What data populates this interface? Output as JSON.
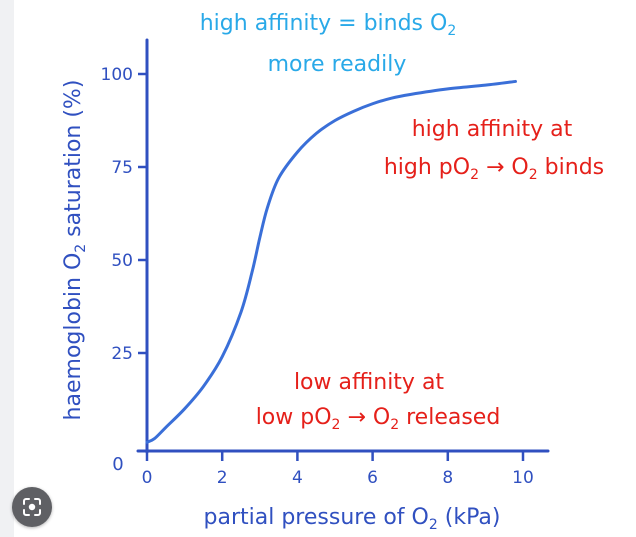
{
  "chart_data": {
    "type": "line",
    "ylabel_parts": [
      "haemoglobin O",
      "2",
      " saturation (%)"
    ],
    "xlabel_parts": [
      "partial pressure of O",
      "2",
      " (kPa)"
    ],
    "x_ticks": [
      0,
      2,
      4,
      6,
      8,
      10
    ],
    "y_ticks": [
      0,
      25,
      50,
      75,
      100
    ],
    "y_origin_label": "0",
    "xlim": [
      0,
      10
    ],
    "ylim": [
      0,
      100
    ],
    "series": [
      {
        "color": "#3a6fd8",
        "x": [
          0,
          0.2,
          0.5,
          1.0,
          1.5,
          2.0,
          2.5,
          2.8,
          3.0,
          3.2,
          3.5,
          4.0,
          4.5,
          5.0,
          5.5,
          6.0,
          6.5,
          7.0,
          8.0,
          9.0,
          9.8
        ],
        "y": [
          1,
          2,
          5,
          10,
          16,
          24,
          36,
          47,
          56,
          64,
          72,
          79,
          84,
          87.5,
          90,
          92,
          93.5,
          94.5,
          96,
          97,
          98
        ]
      }
    ]
  },
  "annotations": {
    "top": {
      "color": "#29a9e8",
      "line1_parts": [
        "high affinity = binds O",
        "2"
      ],
      "line2": "more readily"
    },
    "upper_right": {
      "color": "#e5201a",
      "line1": "high affinity at",
      "line2_parts": [
        "high pO",
        "2",
        " → O",
        "2",
        " binds"
      ]
    },
    "lower_right": {
      "color": "#e5201a",
      "line1": "low affinity at",
      "line2_parts": [
        "low pO",
        "2",
        " → O",
        "2",
        " released"
      ]
    }
  },
  "colors": {
    "axis": "#3050c0",
    "label": "#3050c0"
  },
  "overlay": {
    "icon": "lens-icon"
  }
}
